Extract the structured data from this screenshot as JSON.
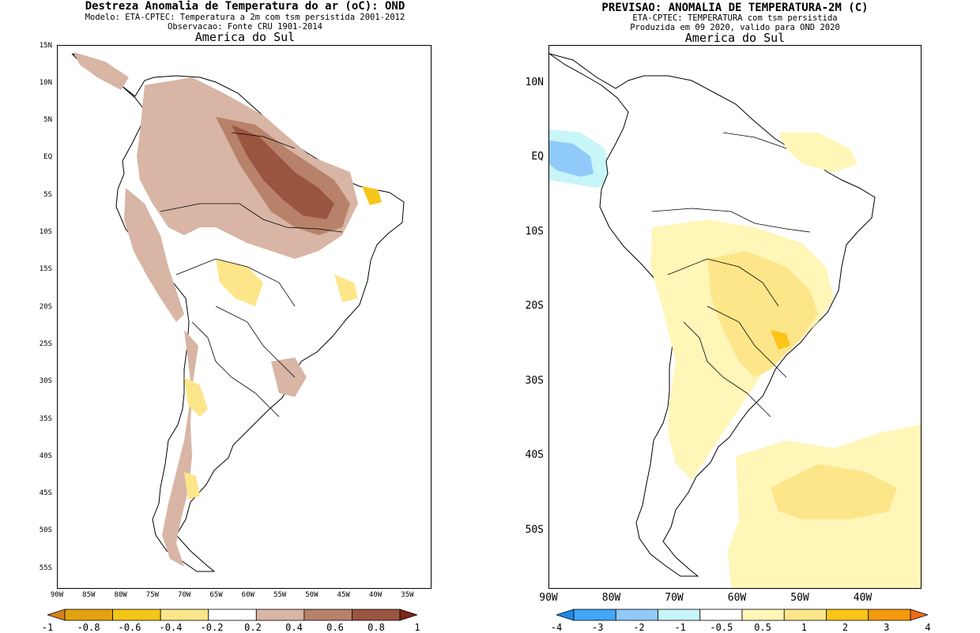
{
  "left_panel": {
    "title": "Destreza Anomalia de Temperatura do ar (oC): OND",
    "subtitle_1": "Modelo: ETA-CPTEC: Temperatura a 2m com tsm persistida 2001-2012",
    "subtitle_2": "Observacao: Fonte CRU 1901-2014",
    "region": "America do Sul",
    "lat_labels": [
      "15N",
      "10N",
      "5N",
      "EQ",
      "5S",
      "10S",
      "15S",
      "20S",
      "25S",
      "30S",
      "35S",
      "40S",
      "45S",
      "50S",
      "55S"
    ],
    "lon_labels": [
      "90W",
      "85W",
      "80W",
      "75W",
      "70W",
      "65W",
      "60W",
      "55W",
      "50W",
      "45W",
      "40W",
      "35W"
    ],
    "colorbar": {
      "labels": [
        "-1",
        "-0.8",
        "-0.6",
        "-0.4",
        "-0.2",
        "0.2",
        "0.4",
        "0.6",
        "0.8",
        "1"
      ],
      "colors": [
        "#d4821e",
        "#e3a210",
        "#f3c617",
        "#fde68a",
        "#ffffff",
        "#d8b5a5",
        "#b8826a",
        "#9a5540",
        "#7b2618"
      ]
    }
  },
  "right_panel": {
    "title": "PREVISAO: ANOMALIA DE TEMPERATURA-2M (C)",
    "subtitle_1": "ETA-CPTEC: TEMPERATURA com tsm persistida",
    "subtitle_2": "Produzida em 09 2020, valido para OND 2020",
    "region": "America do Sul",
    "lat_labels": [
      "10N",
      "EQ",
      "10S",
      "20S",
      "30S",
      "40S",
      "50S"
    ],
    "lon_labels": [
      "90W",
      "80W",
      "70W",
      "60W",
      "50W",
      "40W"
    ],
    "colorbar": {
      "labels": [
        "-4",
        "-3",
        "-2",
        "-1",
        "-0.5",
        "0.5",
        "1",
        "2",
        "3",
        "4"
      ],
      "colors": [
        "#1e88e5",
        "#42a5f5",
        "#90caf9",
        "#c7f5f8",
        "#ffffff",
        "#fff6b8",
        "#fde68a",
        "#fbc417",
        "#f59a0e",
        "#ec6a1c"
      ]
    }
  }
}
